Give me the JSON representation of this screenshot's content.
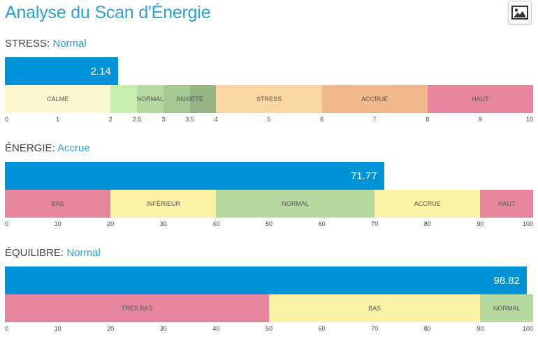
{
  "page": {
    "title": "Analyse du Scan d'Énergie",
    "image_button_icon": "image-icon"
  },
  "sections": [
    {
      "key": "stress",
      "label": "STRESS:",
      "status": "Normal",
      "value": 2.14,
      "value_label": "2.14",
      "scale": [
        0,
        10
      ],
      "zones": [
        {
          "label": "CALME",
          "from": 0,
          "to": 2,
          "color": "#fdf6cf"
        },
        {
          "label": "NORMAL",
          "from": 2,
          "to": 2.5,
          "color": "#c9efb0"
        },
        {
          "label": "",
          "from": 2.5,
          "to": 3,
          "color": "#b6d9a0"
        },
        {
          "label": "ANXIÉTÉ",
          "from": 3,
          "to": 3.5,
          "color": "#a6c993"
        },
        {
          "label": "",
          "from": 3.5,
          "to": 4,
          "color": "#95b383"
        },
        {
          "label": "STRESS",
          "from": 4,
          "to": 6,
          "color": "#fad6a3"
        },
        {
          "label": "ACCRUE",
          "from": 6,
          "to": 8,
          "color": "#f1b88c"
        },
        {
          "label": "HAUT",
          "from": 8,
          "to": 10,
          "color": "#e5869e"
        }
      ],
      "zone_labels": [
        {
          "text": "CALME",
          "at": 1
        },
        {
          "text": "NORMAL",
          "at": 2.75
        },
        {
          "text": "ANXIÉTÉ",
          "at": 3.5
        },
        {
          "text": "STRESS",
          "at": 5
        },
        {
          "text": "ACCRUE",
          "at": 7
        },
        {
          "text": "HAUT",
          "at": 9
        }
      ],
      "ticks": [
        {
          "value": 0,
          "label": "0"
        },
        {
          "value": 1,
          "label": "1"
        },
        {
          "value": 2,
          "label": "2"
        },
        {
          "value": 2.5,
          "label": "2.5"
        },
        {
          "value": 3,
          "label": "3"
        },
        {
          "value": 3.5,
          "label": "3.5"
        },
        {
          "value": 4,
          "label": "4"
        },
        {
          "value": 5,
          "label": "5"
        },
        {
          "value": 6,
          "label": "6"
        },
        {
          "value": 7,
          "label": "7"
        },
        {
          "value": 8,
          "label": "8"
        },
        {
          "value": 9,
          "label": "9"
        },
        {
          "value": 10,
          "label": "10"
        }
      ]
    },
    {
      "key": "energie",
      "label": "ÉNERGIE:",
      "status": "Accrue",
      "value": 71.77,
      "value_label": "71.77",
      "scale": [
        0,
        100
      ],
      "zones": [
        {
          "label": "BAS",
          "from": 0,
          "to": 20,
          "color": "#e5869e"
        },
        {
          "label": "INFÉRIEUR",
          "from": 20,
          "to": 40,
          "color": "#faf3a6"
        },
        {
          "label": "NORMAL",
          "from": 40,
          "to": 70,
          "color": "#b6d9a0"
        },
        {
          "label": "ACCRUE",
          "from": 70,
          "to": 90,
          "color": "#faf3a6"
        },
        {
          "label": "HAUT",
          "from": 90,
          "to": 100,
          "color": "#e5869e"
        }
      ],
      "zone_labels": [
        {
          "text": "BAS",
          "at": 10
        },
        {
          "text": "INFÉRIEUR",
          "at": 30
        },
        {
          "text": "NORMAL",
          "at": 55
        },
        {
          "text": "ACCRUE",
          "at": 80
        },
        {
          "text": "HAUT",
          "at": 95
        }
      ],
      "ticks": [
        {
          "value": 0,
          "label": "0"
        },
        {
          "value": 10,
          "label": "10"
        },
        {
          "value": 20,
          "label": "20"
        },
        {
          "value": 30,
          "label": "30"
        },
        {
          "value": 40,
          "label": "40"
        },
        {
          "value": 50,
          "label": "50"
        },
        {
          "value": 60,
          "label": "60"
        },
        {
          "value": 70,
          "label": "70"
        },
        {
          "value": 80,
          "label": "80"
        },
        {
          "value": 90,
          "label": "90"
        },
        {
          "value": 100,
          "label": "100"
        }
      ]
    },
    {
      "key": "equilibre",
      "label": "ÉQUILIBRE:",
      "status": "Normal",
      "value": 98.82,
      "value_label": "98.82",
      "scale": [
        0,
        100
      ],
      "zones": [
        {
          "label": "TRÈS BAS",
          "from": 0,
          "to": 50,
          "color": "#e5869e"
        },
        {
          "label": "BAS",
          "from": 50,
          "to": 90,
          "color": "#faf3a6"
        },
        {
          "label": "NORMAL",
          "from": 90,
          "to": 100,
          "color": "#b6d9a0"
        }
      ],
      "zone_labels": [
        {
          "text": "TRÈS BAS",
          "at": 25
        },
        {
          "text": "BAS",
          "at": 70
        },
        {
          "text": "NORMAL",
          "at": 95
        }
      ],
      "ticks": [
        {
          "value": 0,
          "label": "0"
        },
        {
          "value": 10,
          "label": "10"
        },
        {
          "value": 20,
          "label": "20"
        },
        {
          "value": 30,
          "label": "30"
        },
        {
          "value": 40,
          "label": "40"
        },
        {
          "value": 50,
          "label": "50"
        },
        {
          "value": 60,
          "label": "60"
        },
        {
          "value": 70,
          "label": "70"
        },
        {
          "value": 80,
          "label": "80"
        },
        {
          "value": 90,
          "label": "90"
        },
        {
          "value": 100,
          "label": "100"
        }
      ]
    }
  ]
}
